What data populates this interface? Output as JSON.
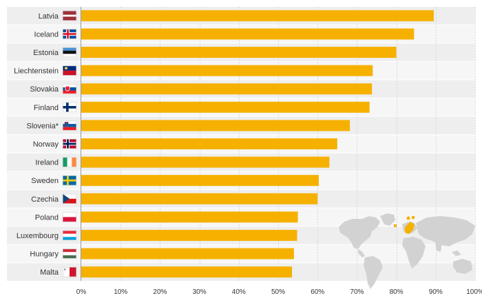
{
  "chart_data": {
    "type": "bar",
    "orientation": "horizontal",
    "categories": [
      "Latvia",
      "Iceland",
      "Estonia",
      "Liechtenstein",
      "Slovakia",
      "Finland",
      "Slovenia*",
      "Norway",
      "Ireland",
      "Sweden",
      "Czechia",
      "Poland",
      "Luxembourg",
      "Hungary",
      "Malta"
    ],
    "flags": [
      "lv",
      "is",
      "ee",
      "li",
      "sk",
      "fi",
      "si",
      "no",
      "ie",
      "se",
      "cz",
      "pl",
      "lu",
      "hu",
      "mt"
    ],
    "values": [
      89.5,
      84.5,
      80.0,
      74.0,
      73.8,
      73.2,
      68.2,
      65.0,
      63.0,
      60.3,
      60.0,
      55.0,
      54.8,
      54.0,
      53.5
    ],
    "xlim": [
      0,
      100
    ],
    "xticks": [
      0,
      10,
      20,
      30,
      40,
      50,
      60,
      70,
      80,
      90,
      100
    ],
    "tick_suffix": "%",
    "bar_color": "#f6b100",
    "grid": true
  }
}
